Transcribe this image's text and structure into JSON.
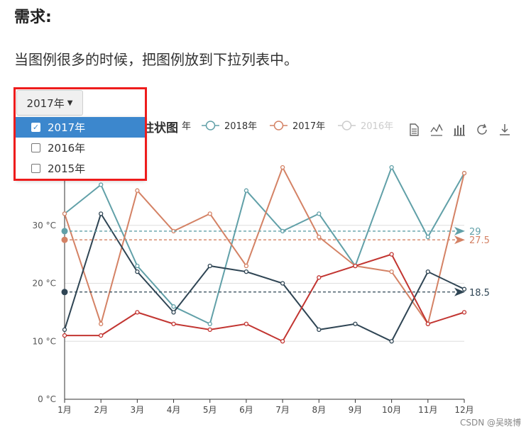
{
  "heading": "需求:",
  "paragraph": "当图例很多的时候，把图例放到下拉列表中。",
  "dropdown": {
    "selected": "2017年",
    "options": [
      {
        "label": "2017年",
        "checked": true
      },
      {
        "label": "2016年",
        "checked": false
      },
      {
        "label": "2015年",
        "checked": false
      }
    ]
  },
  "watermark": "CSDN @吴晓博",
  "chart_data": {
    "type": "line",
    "title": "柱状图",
    "categories": [
      "1月",
      "2月",
      "3月",
      "4月",
      "5月",
      "6月",
      "7月",
      "8月",
      "9月",
      "10月",
      "11月",
      "12月"
    ],
    "ylim": [
      0,
      40
    ],
    "yticks": [
      0,
      10,
      20,
      30
    ],
    "ytick_labels": [
      "0 °C",
      "10 °C",
      "20 °C",
      "30 °C"
    ],
    "grid": true,
    "legend": {
      "placement": "top-right",
      "visible_fragment": "年",
      "entries": [
        {
          "name": "2018年",
          "color": "#61a0a8",
          "enabled": true
        },
        {
          "name": "2017年",
          "color": "#d48265",
          "enabled": true
        },
        {
          "name": "2016年",
          "color": "#cccccc",
          "enabled": false
        },
        {
          "name": "2015年",
          "color": "#cccccc",
          "enabled": false
        }
      ]
    },
    "series": [
      {
        "name": "2018年",
        "color": "#61a0a8",
        "values": [
          32,
          37,
          23,
          16,
          13,
          36,
          29,
          32,
          23,
          40,
          28,
          39
        ],
        "avg": 29,
        "avg_label": "29"
      },
      {
        "name": "2017年",
        "color": "#d48265",
        "values": [
          32,
          13,
          36,
          29,
          32,
          23,
          40,
          28,
          23,
          22,
          13,
          39
        ],
        "avg": 27.5,
        "avg_label": "27.5"
      },
      {
        "color": "#2f4554",
        "values": [
          12,
          32,
          22,
          15,
          23,
          22,
          20,
          12,
          13,
          10,
          22,
          19
        ],
        "avg": 18.5,
        "avg_label": "18.5"
      },
      {
        "color": "#c23531",
        "values": [
          11,
          11,
          15,
          13,
          12,
          13,
          10,
          21,
          23,
          25,
          13,
          15
        ]
      }
    ]
  },
  "toolbox": {
    "icons": [
      "data-view-icon",
      "line-chart-icon",
      "bar-chart-icon",
      "restore-icon",
      "download-icon"
    ]
  }
}
